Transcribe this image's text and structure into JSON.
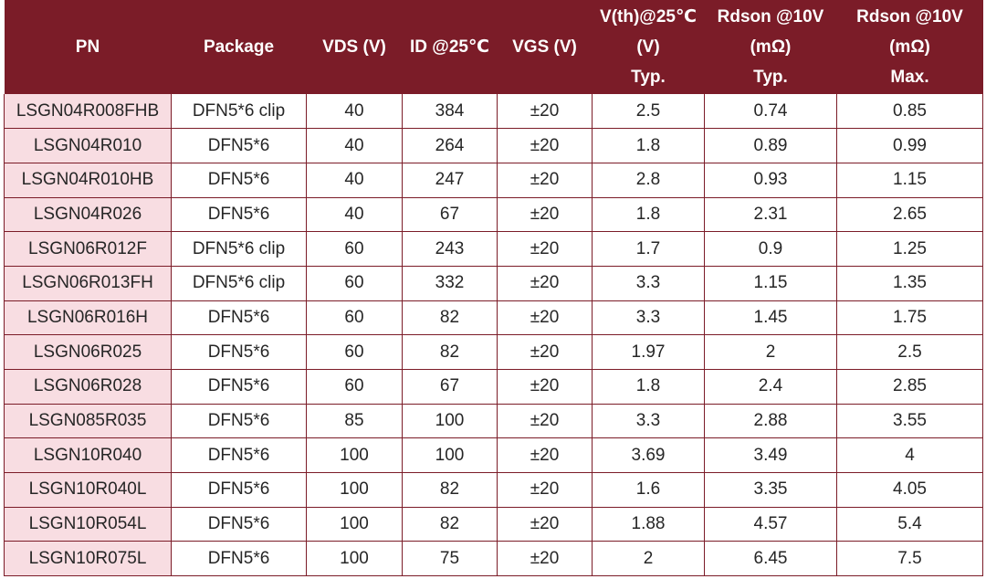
{
  "table": {
    "headers": [
      {
        "lines": [
          "PN"
        ]
      },
      {
        "lines": [
          "Package"
        ]
      },
      {
        "lines": [
          "VDS (V)"
        ]
      },
      {
        "lines": [
          "ID @25℃"
        ]
      },
      {
        "lines": [
          "VGS (V)"
        ]
      },
      {
        "lines": [
          "V(th)@25℃",
          "(V)",
          "Typ."
        ]
      },
      {
        "lines": [
          "Rdson @10V",
          "(mΩ)",
          "Typ."
        ]
      },
      {
        "lines": [
          "Rdson @10V",
          "(mΩ)",
          "Max."
        ]
      }
    ],
    "rows": [
      [
        "LSGN04R008FHB",
        "DFN5*6 clip",
        "40",
        "384",
        "±20",
        "2.5",
        "0.74",
        "0.85"
      ],
      [
        "LSGN04R010",
        "DFN5*6",
        "40",
        "264",
        "±20",
        "1.8",
        "0.89",
        "0.99"
      ],
      [
        "LSGN04R010HB",
        "DFN5*6",
        "40",
        "247",
        "±20",
        "2.8",
        "0.93",
        "1.15"
      ],
      [
        "LSGN04R026",
        "DFN5*6",
        "40",
        "67",
        "±20",
        "1.8",
        "2.31",
        "2.65"
      ],
      [
        "LSGN06R012F",
        "DFN5*6 clip",
        "60",
        "243",
        "±20",
        "1.7",
        "0.9",
        "1.25"
      ],
      [
        "LSGN06R013FH",
        "DFN5*6 clip",
        "60",
        "332",
        "±20",
        "3.3",
        "1.15",
        "1.35"
      ],
      [
        "LSGN06R016H",
        "DFN5*6",
        "60",
        "82",
        "±20",
        "3.3",
        "1.45",
        "1.75"
      ],
      [
        "LSGN06R025",
        "DFN5*6",
        "60",
        "82",
        "±20",
        "1.97",
        "2",
        "2.5"
      ],
      [
        "LSGN06R028",
        "DFN5*6",
        "60",
        "67",
        "±20",
        "1.8",
        "2.4",
        "2.85"
      ],
      [
        "LSGN085R035",
        "DFN5*6",
        "85",
        "100",
        "±20",
        "3.3",
        "2.88",
        "3.55"
      ],
      [
        "LSGN10R040",
        "DFN5*6",
        "100",
        "100",
        "±20",
        "3.69",
        "3.49",
        "4"
      ],
      [
        "LSGN10R040L",
        "DFN5*6",
        "100",
        "82",
        "±20",
        "1.6",
        "3.35",
        "4.05"
      ],
      [
        "LSGN10R054L",
        "DFN5*6",
        "100",
        "82",
        "±20",
        "1.88",
        "4.57",
        "5.4"
      ],
      [
        "LSGN10R075L",
        "DFN5*6",
        "100",
        "75",
        "±20",
        "2",
        "6.45",
        "7.5"
      ]
    ]
  },
  "colors": {
    "header_bg": "#7b1c28",
    "header_text": "#ffffff",
    "pn_column_bg": "#f8dde2",
    "border": "#7b1c28"
  }
}
